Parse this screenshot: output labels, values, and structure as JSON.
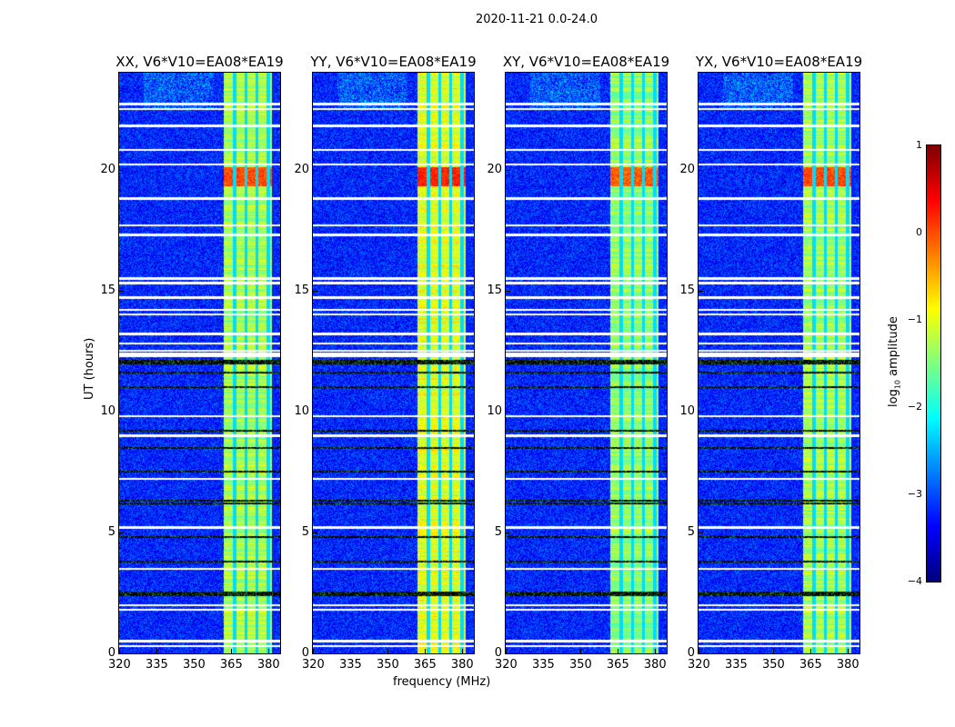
{
  "chart_data": {
    "type": "heatmap",
    "title": "2020-11-21 0.0-24.0",
    "xlabel": "frequency (MHz)",
    "ylabel": "UT (hours)",
    "xlim": [
      320,
      384.8
    ],
    "ylim": [
      0,
      24
    ],
    "xticks": [
      "320",
      "335",
      "350",
      "365",
      "380"
    ],
    "xtick_values": [
      320,
      335,
      350,
      365,
      380
    ],
    "yticks": [
      "0",
      "5",
      "10",
      "15",
      "20"
    ],
    "ytick_values": [
      0,
      5,
      10,
      15,
      20
    ],
    "panels": [
      {
        "title": "XX, V6*V10=EA08*EA19",
        "band_level": -1.3,
        "hot_level": 0.3
      },
      {
        "title": "YY, V6*V10=EA08*EA19",
        "band_level": -1.0,
        "hot_level": 0.5
      },
      {
        "title": "XY, V6*V10=EA08*EA19",
        "band_level": -1.4,
        "hot_level": 0.2
      },
      {
        "title": "YX, V6*V10=EA08*EA19",
        "band_level": -1.3,
        "hot_level": 0.3
      }
    ],
    "background_level": -3.2,
    "bright_band_mhz": [
      362,
      384
    ],
    "band_gaps_mhz": [
      366.5,
      371,
      375.5,
      380
    ],
    "hot_hours": [
      19.3,
      20.1
    ],
    "flagged_hours_white": [
      0.3,
      0.5,
      1.8,
      2.0,
      3.5,
      5.2,
      7.2,
      9.0,
      9.8,
      12.3,
      12.4,
      12.5,
      12.8,
      13.2,
      14.0,
      14.2,
      14.7,
      15.3,
      15.5,
      17.3,
      17.7,
      18.8,
      20.2,
      20.8,
      21.8,
      22.5,
      22.7
    ],
    "dark_hours": [
      1.8,
      2.4,
      2.5,
      3.8,
      4.8,
      6.2,
      6.3,
      7.5,
      8.5,
      9.2,
      11.0,
      11.6,
      12.0,
      12.1
    ],
    "colorbar": {
      "label": "log10 amplitude",
      "label_main": "log",
      "label_sub": "10",
      "label_rest": " amplitude",
      "range": [
        -4,
        1
      ],
      "ticks": [
        "1",
        "0",
        "−1",
        "−2",
        "−3",
        "−4"
      ],
      "tick_values": [
        1,
        0,
        -1,
        -2,
        -3,
        -4
      ],
      "colormap": "jet"
    }
  }
}
